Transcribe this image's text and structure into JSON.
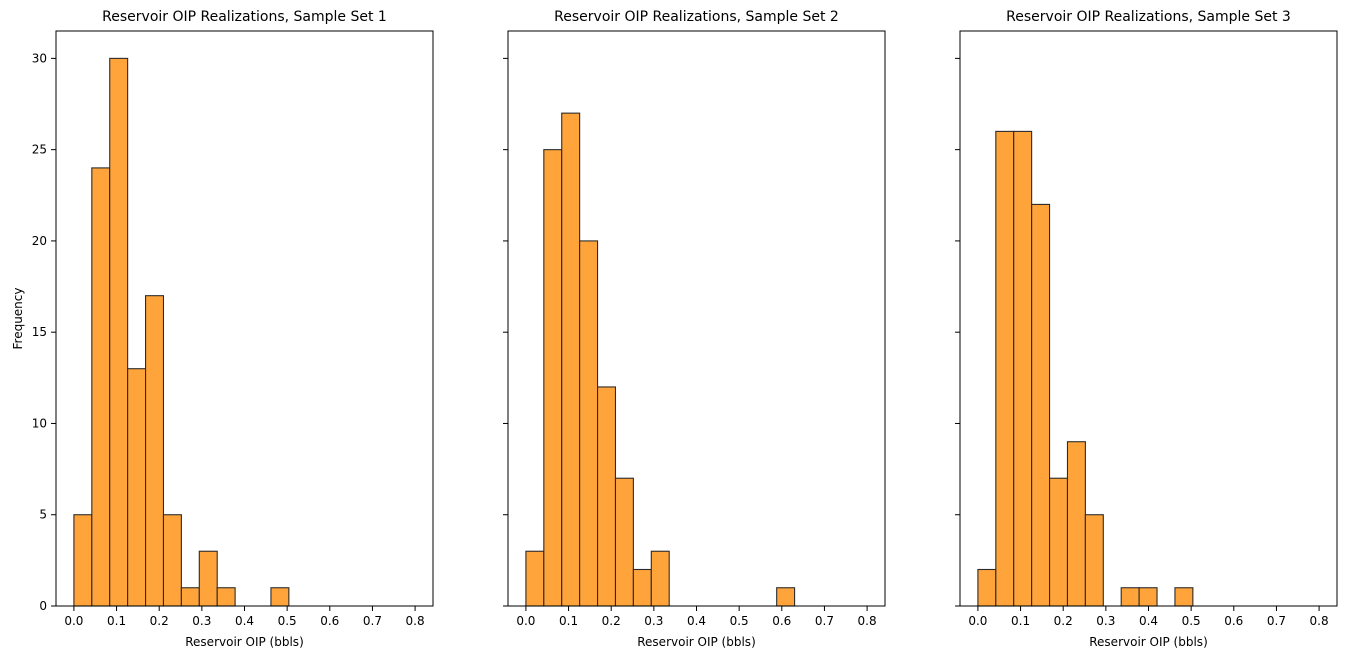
{
  "colors": {
    "bar_fill": "#FFA43A",
    "bar_edge": "#2b2b2b",
    "axis": "#000000"
  },
  "shared_ylabel": "Frequency",
  "chart_data": [
    {
      "type": "bar",
      "subtype": "histogram",
      "title": "Reservoir OIP Realizations, Sample Set 1",
      "xlabel": "Reservoir OIP (bbls)",
      "ylabel": "Frequency",
      "xlim": [
        0.0,
        0.8
      ],
      "ylim": [
        0,
        31.5
      ],
      "xticks": [
        "0.0",
        "0.1",
        "0.2",
        "0.3",
        "0.4",
        "0.5",
        "0.6",
        "0.7",
        "0.8"
      ],
      "yticks": [
        "0",
        "5",
        "10",
        "15",
        "20",
        "25",
        "30"
      ],
      "bin_edges": [
        0.0,
        0.042,
        0.084,
        0.126,
        0.168,
        0.21,
        0.252,
        0.294,
        0.336,
        0.378,
        0.42,
        0.462,
        0.504
      ],
      "values": [
        5,
        24,
        30,
        13,
        17,
        5,
        1,
        3,
        1,
        0,
        0,
        1
      ],
      "grid": false,
      "legend": false
    },
    {
      "type": "bar",
      "subtype": "histogram",
      "title": "Reservoir OIP Realizations, Sample Set 2",
      "xlabel": "Reservoir OIP (bbls)",
      "ylabel": "",
      "xlim": [
        0.0,
        0.8
      ],
      "ylim": [
        0,
        31.5
      ],
      "xticks": [
        "0.0",
        "0.1",
        "0.2",
        "0.3",
        "0.4",
        "0.5",
        "0.6",
        "0.7",
        "0.8"
      ],
      "yticks": [],
      "bin_edges": [
        0.0,
        0.042,
        0.084,
        0.126,
        0.168,
        0.21,
        0.252,
        0.294,
        0.336,
        0.378,
        0.42,
        0.462,
        0.504,
        0.546,
        0.588,
        0.63
      ],
      "values": [
        3,
        25,
        27,
        20,
        12,
        7,
        2,
        3,
        0,
        0,
        0,
        0,
        0,
        0,
        1
      ],
      "grid": false,
      "legend": false
    },
    {
      "type": "bar",
      "subtype": "histogram",
      "title": "Reservoir OIP Realizations, Sample Set 3",
      "xlabel": "Reservoir OIP (bbls)",
      "ylabel": "",
      "xlim": [
        0.0,
        0.8
      ],
      "ylim": [
        0,
        31.5
      ],
      "xticks": [
        "0.0",
        "0.1",
        "0.2",
        "0.3",
        "0.4",
        "0.5",
        "0.6",
        "0.7",
        "0.8"
      ],
      "yticks": [],
      "bin_edges": [
        0.0,
        0.042,
        0.084,
        0.126,
        0.168,
        0.21,
        0.252,
        0.294,
        0.336,
        0.378,
        0.42,
        0.462,
        0.504
      ],
      "values": [
        2,
        26,
        26,
        22,
        7,
        9,
        5,
        0,
        1,
        1,
        0,
        1
      ],
      "grid": false,
      "legend": false
    }
  ]
}
